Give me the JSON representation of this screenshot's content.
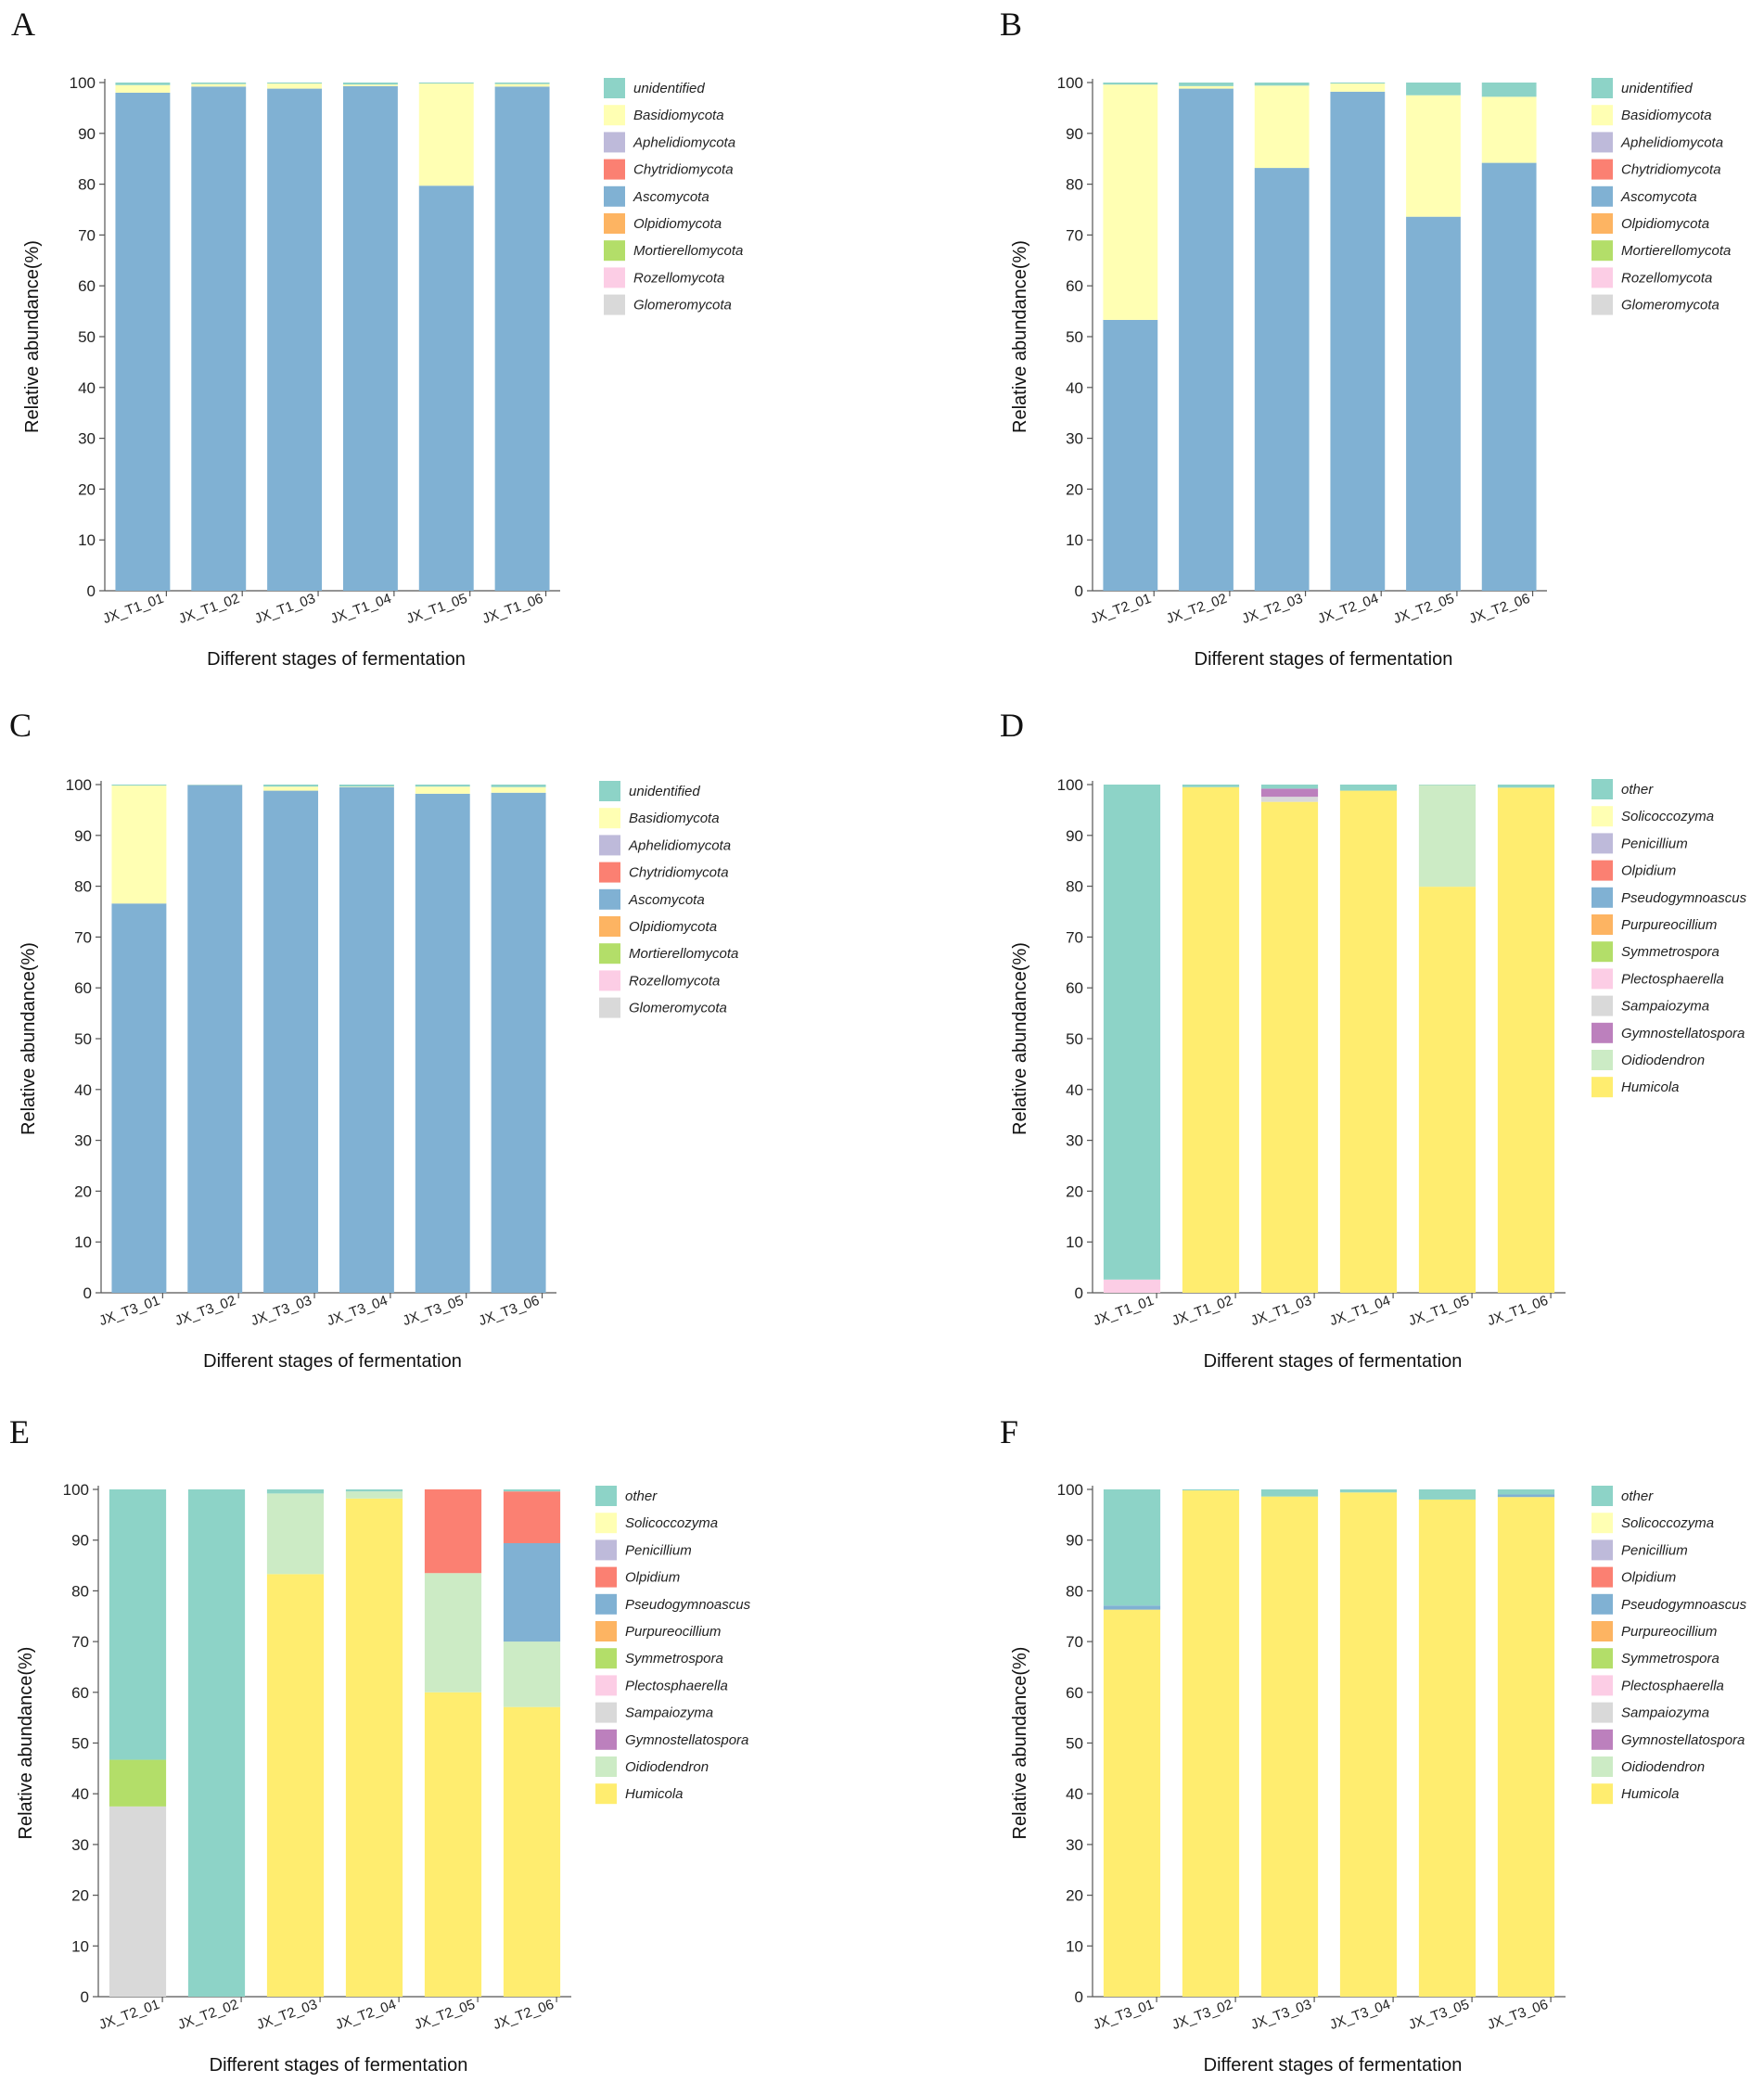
{
  "xlabel": "Different stages of fermentation",
  "ylabel": "Relative abundance(%)",
  "yticks": [
    "0",
    "10",
    "20",
    "30",
    "40",
    "50",
    "60",
    "70",
    "80",
    "90",
    "100"
  ],
  "colors": {
    "unidentified": "#8dd3c7",
    "Basidiomycota": "#ffffb3",
    "Aphelidiomycota": "#bebada",
    "Chytridiomycota": "#fb8072",
    "Ascomycota": "#80b1d3",
    "Olpidiomycota": "#fdb462",
    "Mortierellomycota": "#b3de69",
    "Rozellomycota": "#fccde5",
    "Glomeromycota": "#d9d9d9",
    "other": "#8dd3c7",
    "Solicoccozyma": "#ffffb3",
    "Penicillium": "#bebada",
    "Olpidium": "#fb8072",
    "Pseudogymnoascus": "#80b1d3",
    "Purpureocillium": "#fdb462",
    "Symmetrospora": "#b3de69",
    "Plectosphaerella": "#fccde5",
    "Sampaiozyma": "#d9d9d9",
    "Gymnostellatospora": "#bc80bd",
    "Oidiodendron": "#ccebc5",
    "Humicola": "#ffed6f"
  },
  "chart_data": [
    {
      "panel": "A",
      "type": "bar",
      "stacked": true,
      "ylim": [
        0,
        100
      ],
      "title": "",
      "xlabel": "Different stages of fermentation",
      "ylabel": "Relative abundance(%)",
      "categories": [
        "JX_T1_01",
        "JX_T1_02",
        "JX_T1_03",
        "JX_T1_04",
        "JX_T1_05",
        "JX_T1_06"
      ],
      "legend": [
        "unidentified",
        "Basidiomycota",
        "Aphelidiomycota",
        "Chytridiomycota",
        "Ascomycota",
        "Olpidiomycota",
        "Mortierellomycota",
        "Rozellomycota",
        "Glomeromycota"
      ],
      "series": [
        {
          "name": "Ascomycota",
          "values": [
            98,
            99.2,
            98.8,
            99.3,
            79.7,
            99.2
          ]
        },
        {
          "name": "Basidiomycota",
          "values": [
            1.5,
            0.5,
            1.0,
            0.3,
            20.1,
            0.5
          ]
        },
        {
          "name": "unidentified",
          "values": [
            0.5,
            0.3,
            0.2,
            0.4,
            0.2,
            0.3
          ]
        }
      ]
    },
    {
      "panel": "B",
      "type": "bar",
      "stacked": true,
      "ylim": [
        0,
        100
      ],
      "title": "",
      "xlabel": "Different stages of fermentation",
      "ylabel": "Relative abundance(%)",
      "categories": [
        "JX_T2_01",
        "JX_T2_02",
        "JX_T2_03",
        "JX_T2_04",
        "JX_T2_05",
        "JX_T2_06"
      ],
      "legend": [
        "unidentified",
        "Basidiomycota",
        "Aphelidiomycota",
        "Chytridiomycota",
        "Ascomycota",
        "Olpidiomycota",
        "Mortierellomycota",
        "Rozellomycota",
        "Glomeromycota"
      ],
      "series": [
        {
          "name": "Ascomycota",
          "values": [
            53.3,
            98.8,
            83.2,
            98.2,
            73.6,
            84.2
          ]
        },
        {
          "name": "Basidiomycota",
          "values": [
            46.3,
            0.5,
            16.2,
            1.6,
            23.9,
            13.0
          ]
        },
        {
          "name": "unidentified",
          "values": [
            0.4,
            0.7,
            0.6,
            0.2,
            2.5,
            2.8
          ]
        }
      ]
    },
    {
      "panel": "C",
      "type": "bar",
      "stacked": true,
      "ylim": [
        0,
        100
      ],
      "title": "",
      "xlabel": "Different stages of fermentation",
      "ylabel": "Relative abundance(%)",
      "categories": [
        "JX_T3_01",
        "JX_T3_02",
        "JX_T3_03",
        "JX_T3_04",
        "JX_T3_05",
        "JX_T3_06"
      ],
      "legend": [
        "unidentified",
        "Basidiomycota",
        "Aphelidiomycota",
        "Chytridiomycota",
        "Ascomycota",
        "Olpidiomycota",
        "Mortierellomycota",
        "Rozellomycota",
        "Glomeromycota"
      ],
      "series": [
        {
          "name": "Ascomycota",
          "values": [
            76.6,
            99.9,
            98.8,
            99.5,
            98.2,
            98.4
          ]
        },
        {
          "name": "Basidiomycota",
          "values": [
            23.2,
            0.05,
            0.8,
            0.1,
            1.4,
            1.1
          ]
        },
        {
          "name": "unidentified",
          "values": [
            0.2,
            0.05,
            0.4,
            0.4,
            0.4,
            0.5
          ]
        }
      ]
    },
    {
      "panel": "D",
      "type": "bar",
      "stacked": true,
      "ylim": [
        0,
        100
      ],
      "title": "",
      "xlabel": "Different stages of fermentation",
      "ylabel": "Relative abundance(%)",
      "categories": [
        "JX_T1_01",
        "JX_T1_02",
        "JX_T1_03",
        "JX_T1_04",
        "JX_T1_05",
        "JX_T1_06"
      ],
      "legend": [
        "other",
        "Solicoccozyma",
        "Penicillium",
        "Olpidium",
        "Pseudogymnoascus",
        "Purpureocillium",
        "Symmetrospora",
        "Plectosphaerella",
        "Sampaiozyma",
        "Gymnostellatospora",
        "Oidiodendron",
        "Humicola"
      ],
      "series": [
        {
          "name": "Humicola",
          "values": [
            0,
            99.5,
            96.6,
            98.8,
            79.9,
            99.4
          ]
        },
        {
          "name": "Plectosphaerella",
          "values": [
            2.6,
            0,
            0,
            0,
            0,
            0
          ]
        },
        {
          "name": "Sampaiozyma",
          "values": [
            0,
            0,
            1.0,
            0,
            0,
            0
          ]
        },
        {
          "name": "Gymnostellatospora",
          "values": [
            0,
            0,
            1.6,
            0,
            0,
            0
          ]
        },
        {
          "name": "Oidiodendron",
          "values": [
            0,
            0,
            0,
            0,
            20.0,
            0
          ]
        },
        {
          "name": "other",
          "values": [
            97.4,
            0.5,
            0.8,
            1.2,
            0.1,
            0.6
          ]
        }
      ]
    },
    {
      "panel": "E",
      "type": "bar",
      "stacked": true,
      "ylim": [
        0,
        100
      ],
      "title": "",
      "xlabel": "Different stages of fermentation",
      "ylabel": "Relative abundance(%)",
      "categories": [
        "JX_T2_01",
        "JX_T2_02",
        "JX_T2_03",
        "JX_T2_04",
        "JX_T2_05",
        "JX_T2_06"
      ],
      "legend": [
        "other",
        "Solicoccozyma",
        "Penicillium",
        "Olpidium",
        "Pseudogymnoascus",
        "Purpureocillium",
        "Symmetrospora",
        "Plectosphaerella",
        "Sampaiozyma",
        "Gymnostellatospora",
        "Oidiodendron",
        "Humicola"
      ],
      "series": [
        {
          "name": "Sampaiozyma",
          "values": [
            37.5,
            0,
            0,
            0,
            0,
            0
          ]
        },
        {
          "name": "Symmetrospora",
          "values": [
            9.2,
            0,
            0,
            0,
            0,
            0
          ]
        },
        {
          "name": "Humicola",
          "values": [
            0,
            0,
            83.3,
            98.2,
            60.0,
            57.1
          ]
        },
        {
          "name": "Oidiodendron",
          "values": [
            0,
            0,
            15.9,
            1.4,
            23.5,
            12.9
          ]
        },
        {
          "name": "Pseudogymnoascus",
          "values": [
            0,
            0,
            0,
            0,
            0,
            19.4
          ]
        },
        {
          "name": "Olpidium",
          "values": [
            0,
            0,
            0,
            0,
            16.5,
            10.2
          ]
        },
        {
          "name": "other",
          "values": [
            53.3,
            100,
            0.8,
            0.4,
            0,
            0.4
          ]
        }
      ]
    },
    {
      "panel": "F",
      "type": "bar",
      "stacked": true,
      "ylim": [
        0,
        100
      ],
      "title": "",
      "xlabel": "Different stages of fermentation",
      "ylabel": "Relative abundance(%)",
      "categories": [
        "JX_T3_01",
        "JX_T3_02",
        "JX_T3_03",
        "JX_T3_04",
        "JX_T3_05",
        "JX_T3_06"
      ],
      "legend": [
        "other",
        "Solicoccozyma",
        "Penicillium",
        "Olpidium",
        "Pseudogymnoascus",
        "Purpureocillium",
        "Symmetrospora",
        "Plectosphaerella",
        "Sampaiozyma",
        "Gymnostellatospora",
        "Oidiodendron",
        "Humicola"
      ],
      "series": [
        {
          "name": "Humicola",
          "values": [
            76.3,
            99.8,
            98.6,
            99.4,
            98.0,
            98.5
          ]
        },
        {
          "name": "Pseudogymnoascus",
          "values": [
            0.8,
            0,
            0,
            0,
            0,
            0.5
          ]
        },
        {
          "name": "other",
          "values": [
            22.9,
            0.2,
            1.4,
            0.6,
            2.0,
            1.0
          ]
        }
      ]
    }
  ]
}
